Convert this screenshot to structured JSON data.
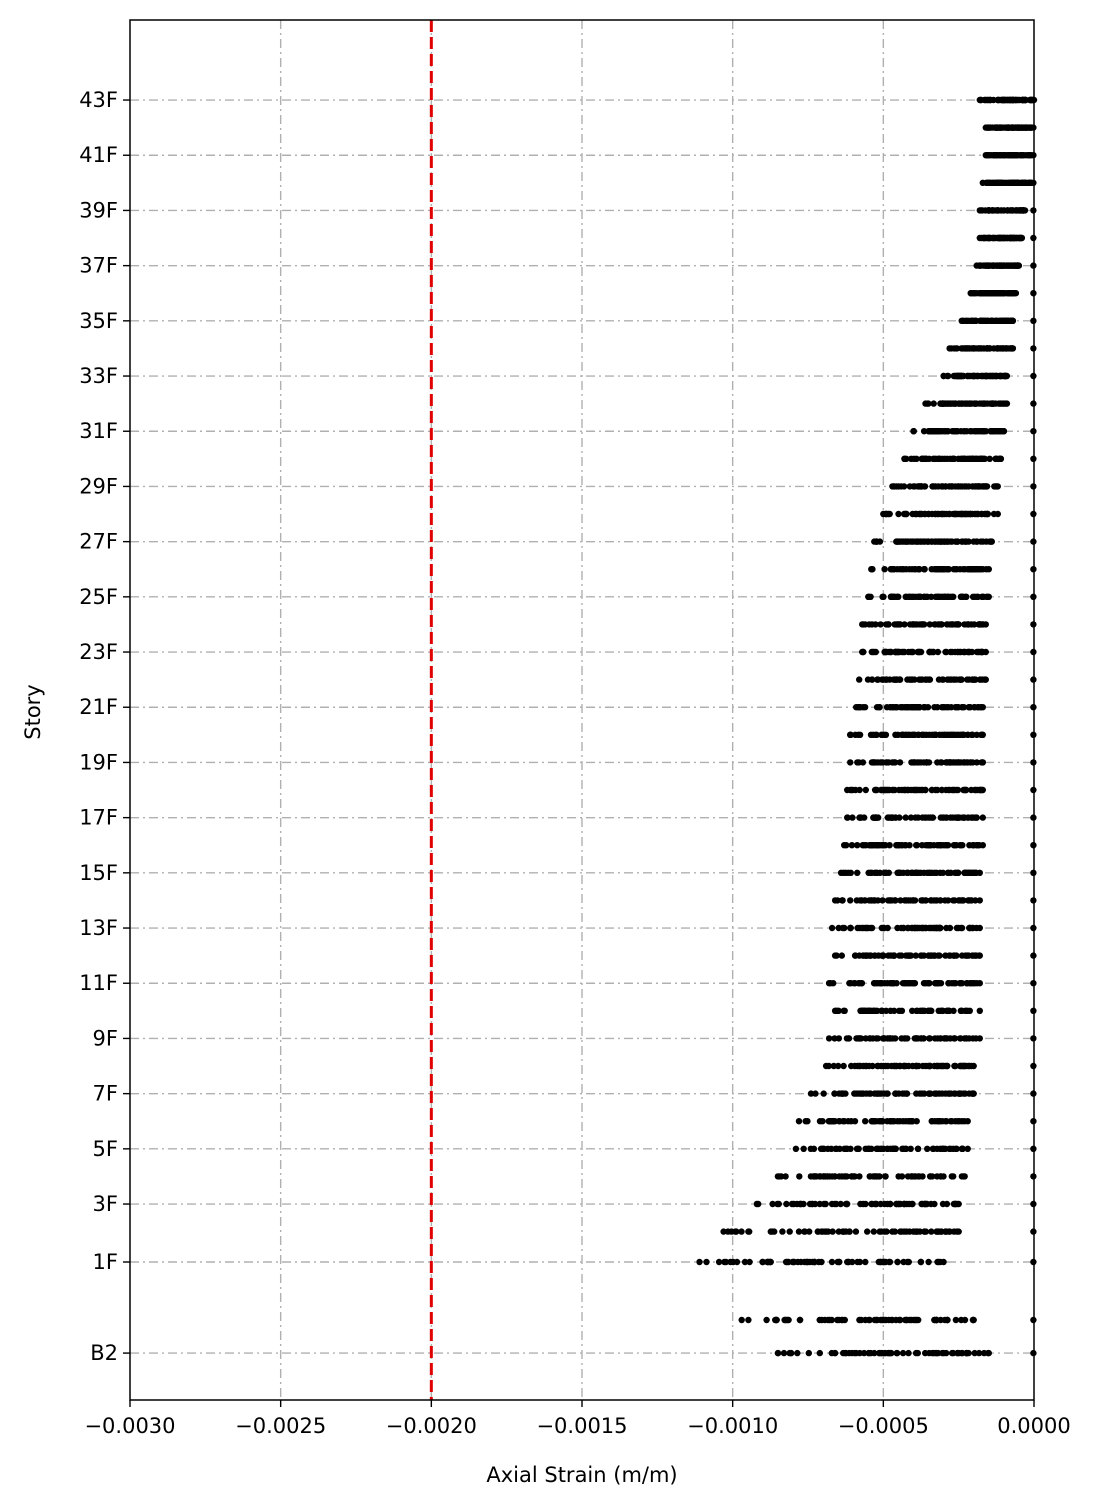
{
  "chart_data": {
    "type": "scatter",
    "title": "",
    "xlabel": "Axial Strain (m/m)",
    "ylabel": "Story",
    "xlim": [
      -0.003,
      0.0
    ],
    "xticks": [
      -0.003,
      -0.0025,
      -0.002,
      -0.0015,
      -0.001,
      -0.0005,
      0.0
    ],
    "xtick_labels": [
      "−0.0030",
      "−0.0025",
      "−0.0020",
      "−0.0015",
      "−0.0010",
      "−0.0005",
      "0.0000"
    ],
    "ylim": [
      -3.7,
      46.3
    ],
    "ytick_labels": [
      "B2",
      "1F",
      "3F",
      "5F",
      "7F",
      "9F",
      "11F",
      "13F",
      "15F",
      "17F",
      "19F",
      "21F",
      "23F",
      "25F",
      "27F",
      "29F",
      "31F",
      "33F",
      "35F",
      "37F",
      "39F",
      "41F",
      "43F"
    ],
    "ytick_positions": [
      -2,
      1.3,
      3.4,
      5.4,
      7.4,
      9.4,
      11.4,
      13.4,
      15.4,
      17.4,
      19.4,
      21.4,
      23.4,
      25.4,
      27.4,
      29.4,
      31.4,
      33.4,
      35.4,
      37.4,
      39.4,
      41.4,
      43.4
    ],
    "grid": true,
    "reference_line": {
      "x": -0.002,
      "color": "#e00000",
      "style": "dashed"
    },
    "point_color": "#000000",
    "rows": [
      {
        "y": -2,
        "min": -0.00085,
        "max": -0.00015
      },
      {
        "y": -0.8,
        "min": -0.00097,
        "max": -0.0002
      },
      {
        "y": 1.3,
        "min": -0.00111,
        "max": -0.0003
      },
      {
        "y": 2.4,
        "min": -0.00103,
        "max": -0.00025
      },
      {
        "y": 3.4,
        "min": -0.00092,
        "max": -0.00025
      },
      {
        "y": 4.4,
        "min": -0.00085,
        "max": -0.00023
      },
      {
        "y": 5.4,
        "min": -0.00079,
        "max": -0.00022
      },
      {
        "y": 6.4,
        "min": -0.00078,
        "max": -0.00022
      },
      {
        "y": 7.4,
        "min": -0.00074,
        "max": -0.0002
      },
      {
        "y": 8.4,
        "min": -0.00069,
        "max": -0.0002
      },
      {
        "y": 9.4,
        "min": -0.00068,
        "max": -0.00018
      },
      {
        "y": 10.4,
        "min": -0.00066,
        "max": -0.00018
      },
      {
        "y": 11.4,
        "min": -0.00068,
        "max": -0.00018
      },
      {
        "y": 12.4,
        "min": -0.00066,
        "max": -0.00018
      },
      {
        "y": 13.4,
        "min": -0.00067,
        "max": -0.00018
      },
      {
        "y": 14.4,
        "min": -0.00066,
        "max": -0.00018
      },
      {
        "y": 15.4,
        "min": -0.00064,
        "max": -0.00018
      },
      {
        "y": 16.4,
        "min": -0.00063,
        "max": -0.00017
      },
      {
        "y": 17.4,
        "min": -0.00062,
        "max": -0.00017
      },
      {
        "y": 18.4,
        "min": -0.00062,
        "max": -0.00017
      },
      {
        "y": 19.4,
        "min": -0.00061,
        "max": -0.00017
      },
      {
        "y": 20.4,
        "min": -0.00061,
        "max": -0.00017
      },
      {
        "y": 21.4,
        "min": -0.00059,
        "max": -0.00017
      },
      {
        "y": 22.4,
        "min": -0.00058,
        "max": -0.00016
      },
      {
        "y": 23.4,
        "min": -0.00057,
        "max": -0.00016
      },
      {
        "y": 24.4,
        "min": -0.00057,
        "max": -0.00016
      },
      {
        "y": 25.4,
        "min": -0.00055,
        "max": -0.00015
      },
      {
        "y": 26.4,
        "min": -0.00054,
        "max": -0.00015
      },
      {
        "y": 27.4,
        "min": -0.00053,
        "max": -0.00014
      },
      {
        "y": 28.4,
        "min": -0.0005,
        "max": -0.00012
      },
      {
        "y": 29.4,
        "min": -0.00047,
        "max": -0.00012
      },
      {
        "y": 30.4,
        "min": -0.00043,
        "max": -0.00011
      },
      {
        "y": 31.4,
        "min": -0.0004,
        "max": -0.0001
      },
      {
        "y": 32.4,
        "min": -0.00036,
        "max": -9e-05
      },
      {
        "y": 33.4,
        "min": -0.0003,
        "max": -9e-05
      },
      {
        "y": 34.4,
        "min": -0.00028,
        "max": -7e-05
      },
      {
        "y": 35.4,
        "min": -0.00024,
        "max": -7e-05
      },
      {
        "y": 36.4,
        "min": -0.00021,
        "max": -6e-05
      },
      {
        "y": 37.4,
        "min": -0.00019,
        "max": -5e-05
      },
      {
        "y": 38.4,
        "min": -0.00018,
        "max": -4e-05
      },
      {
        "y": 39.4,
        "min": -0.00018,
        "max": -3e-05
      },
      {
        "y": 40.4,
        "min": -0.00017,
        "max": -1e-05
      },
      {
        "y": 41.4,
        "min": -0.00016,
        "max": -1e-05
      },
      {
        "y": 42.4,
        "min": -0.00016,
        "max": -1e-05
      },
      {
        "y": 43.4,
        "min": -0.00018,
        "max": 0.0
      }
    ]
  }
}
